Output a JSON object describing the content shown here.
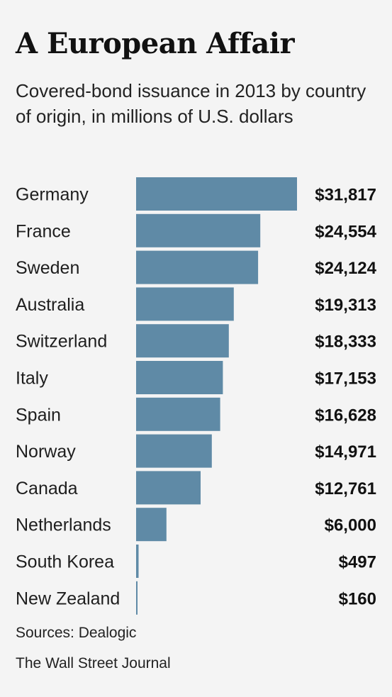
{
  "title": "A European Affair",
  "subtitle": "Covered-bond issuance in 2013 by country of origin, in millions of U.S. dollars",
  "sources": {
    "line1": "Sources: Dealogic",
    "line2": "The Wall Street Journal"
  },
  "colors": {
    "bar": "#5f8aa6",
    "background": "#f4f4f4"
  },
  "chart_data": {
    "type": "bar",
    "orientation": "horizontal",
    "categories": [
      "Germany",
      "France",
      "Sweden",
      "Australia",
      "Switzerland",
      "Italy",
      "Spain",
      "Norway",
      "Canada",
      "Netherlands",
      "South Korea",
      "New Zealand"
    ],
    "values": [
      31817,
      24554,
      24124,
      19313,
      18333,
      17153,
      16628,
      14971,
      12761,
      6000,
      497,
      160
    ],
    "value_labels": [
      "$31,817",
      "$24,554",
      "$24,124",
      "$19,313",
      "$18,333",
      "$17,153",
      "$16,628",
      "$14,971",
      "$12,761",
      "$6,000",
      "$497",
      "$160"
    ],
    "title": "A European Affair",
    "subtitle": "Covered-bond issuance in 2013 by country of origin, in millions of U.S. dollars",
    "xlabel": "",
    "ylabel": "",
    "xlim": [
      0,
      31817
    ],
    "grid": false,
    "legend": "none"
  }
}
